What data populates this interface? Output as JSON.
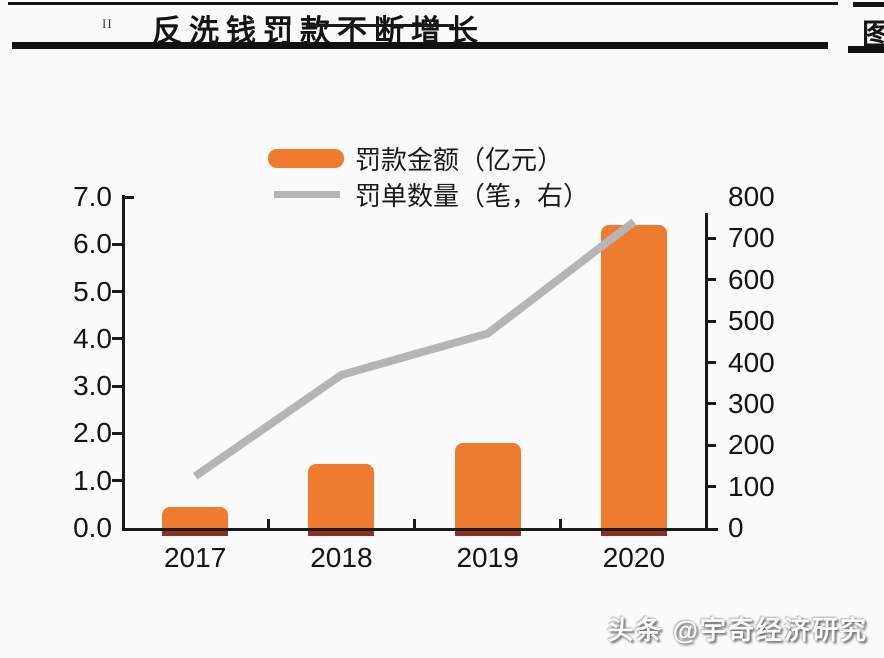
{
  "header": {
    "title": "反洗钱罚款不断增长",
    "marker": "II",
    "right_panel_fragment": "图"
  },
  "legend": [
    {
      "label": "罚款金额（亿元）",
      "swatch": "bar",
      "color": "#EF7B2E"
    },
    {
      "label": "罚单数量（笔，右）",
      "swatch": "line",
      "color": "#B5B5B5"
    }
  ],
  "watermark": "头条 @宇奇经济研究",
  "chart_data": {
    "type": "bar",
    "subtype": "bar+line combo, dual axis",
    "title": "反洗钱罚款不断增长",
    "categories": [
      "2017",
      "2018",
      "2019",
      "2020"
    ],
    "series": [
      {
        "name": "罚款金额（亿元）",
        "type": "bar",
        "axis": "left",
        "color": "#EF7B2E",
        "values": [
          0.45,
          1.35,
          1.8,
          6.4
        ]
      },
      {
        "name": "罚单数量（笔，右）",
        "type": "line",
        "axis": "right",
        "color": "#B5B5B5",
        "values": [
          125,
          370,
          470,
          740
        ]
      }
    ],
    "left_axis": {
      "min": 0,
      "max": 7,
      "step": 1,
      "tick_labels": [
        "0.0",
        "1.0",
        "2.0",
        "3.0",
        "4.0",
        "5.0",
        "6.0",
        "7.0"
      ]
    },
    "right_axis": {
      "min": 0,
      "max": 800,
      "step": 100,
      "tick_labels": [
        "0",
        "100",
        "200",
        "300",
        "400",
        "500",
        "600",
        "700",
        "800"
      ]
    },
    "xlabel": "",
    "ylabel": "",
    "grid": false,
    "legend_position": "top-center"
  }
}
